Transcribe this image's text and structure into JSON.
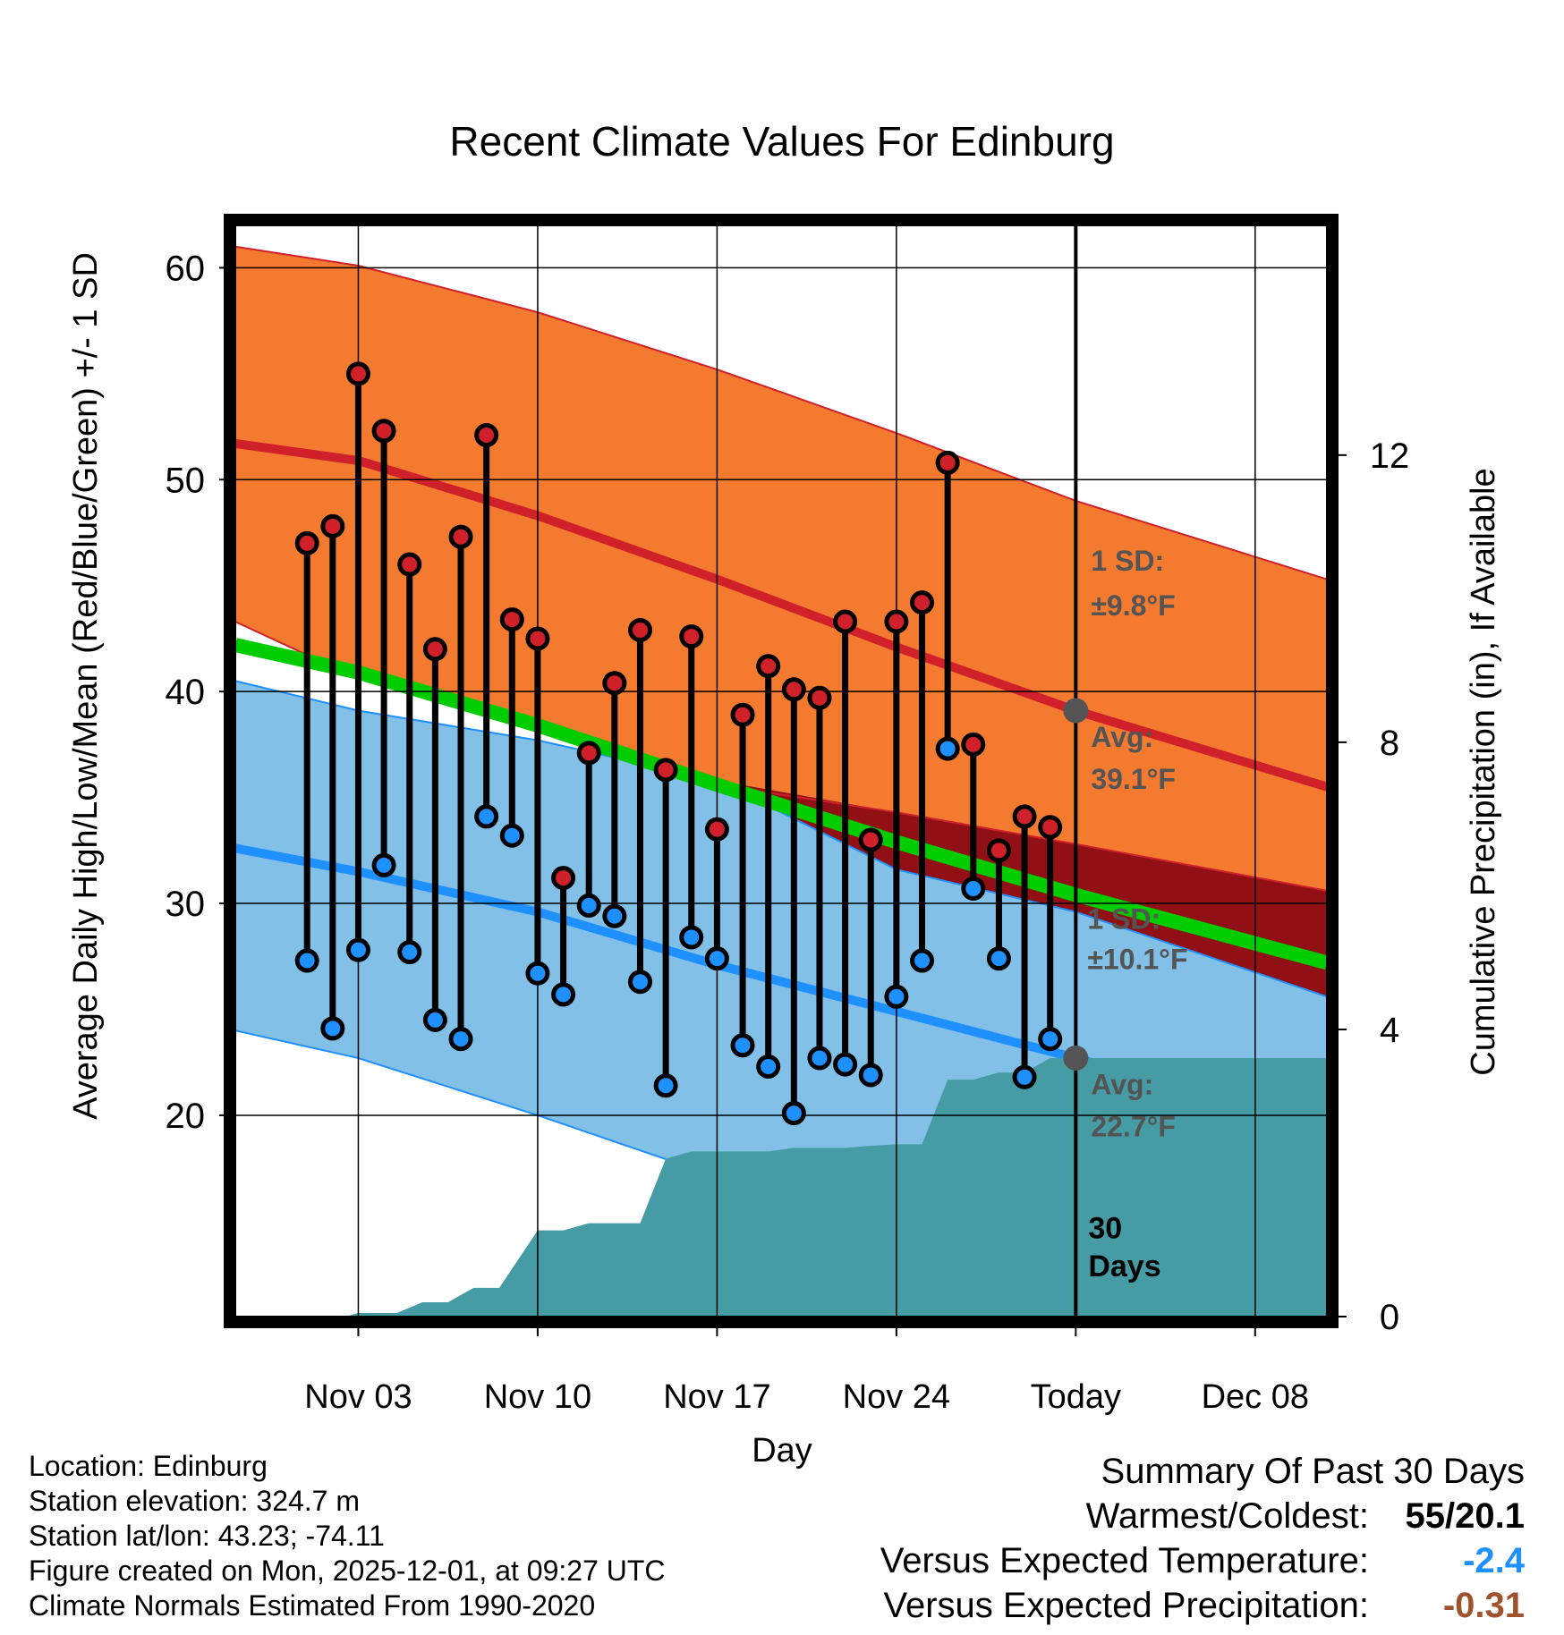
{
  "chart_data": {
    "type": "climate-range",
    "title": "Recent Climate Values For Edinburg",
    "xlabel": "Day",
    "ylabel": "Average Daily High/Low/Mean (Red/Blue/Green) +/- 1 SD",
    "y2label": "Cumulative Precipitation (in), If Available",
    "ylim": [
      10.5,
      62
    ],
    "y_ticks": [
      20,
      30,
      40,
      50,
      60
    ],
    "y2lim": [
      0,
      15.2
    ],
    "y2_ticks": [
      0,
      4,
      8,
      12
    ],
    "xlim": [
      -1.8,
      40.8
    ],
    "x_ticks": [
      {
        "day": 3,
        "label": "Nov 03"
      },
      {
        "day": 10,
        "label": "Nov 10"
      },
      {
        "day": 17,
        "label": "Nov 17"
      },
      {
        "day": 24,
        "label": "Nov 24"
      },
      {
        "day": 31,
        "label": "Today"
      },
      {
        "day": 38,
        "label": "Dec 08"
      }
    ],
    "today_day": 31,
    "normals": {
      "days": [
        -1.8,
        3,
        10,
        17,
        24,
        31,
        40.8
      ],
      "high_upper": [
        61.0,
        60.1,
        57.9,
        55.2,
        52.2,
        49.0,
        45.3
      ],
      "high_mean": [
        51.7,
        50.9,
        48.3,
        45.3,
        42.1,
        39.1,
        35.5
      ],
      "high_lower": [
        43.3,
        40.6,
        38.6,
        35.6,
        34.3,
        32.8,
        30.6
      ],
      "mean": [
        42.2,
        40.9,
        38.4,
        35.6,
        32.9,
        30.4,
        27.2
      ],
      "low_upper": [
        40.5,
        39.1,
        37.7,
        35.8,
        31.6,
        29.6,
        25.6
      ],
      "low_mean": [
        32.6,
        31.5,
        29.6,
        27.1,
        24.9,
        22.7,
        19.3
      ],
      "low_lower": [
        24.0,
        22.7,
        20.0,
        17.1,
        14.7,
        12.0,
        9.5
      ]
    },
    "high_sd_label": "1 SD:",
    "high_sd_value": "±9.8°F",
    "high_avg_label": "Avg:",
    "high_avg_value": "39.1°F",
    "high_avg": 39.1,
    "low_sd_label": "1 SD:",
    "low_sd_value": "±10.1°F",
    "low_avg_label": "Avg:",
    "low_avg_value": "22.7°F",
    "low_avg": 22.7,
    "days_label_1": "30",
    "days_label_2": "Days",
    "observations": [
      {
        "day": 1,
        "high": 47.0,
        "low": 27.3
      },
      {
        "day": 2,
        "high": 47.8,
        "low": 24.1
      },
      {
        "day": 3,
        "high": 55.0,
        "low": 27.8
      },
      {
        "day": 4,
        "high": 52.3,
        "low": 31.8
      },
      {
        "day": 5,
        "high": 46.0,
        "low": 27.7
      },
      {
        "day": 6,
        "high": 42.0,
        "low": 24.5
      },
      {
        "day": 7,
        "high": 47.3,
        "low": 23.6
      },
      {
        "day": 8,
        "high": 52.1,
        "low": 34.1
      },
      {
        "day": 9,
        "high": 43.4,
        "low": 33.2
      },
      {
        "day": 10,
        "high": 42.5,
        "low": 26.7
      },
      {
        "day": 11,
        "high": 31.2,
        "low": 25.7
      },
      {
        "day": 12,
        "high": 37.1,
        "low": 29.9
      },
      {
        "day": 13,
        "high": 40.4,
        "low": 29.4
      },
      {
        "day": 14,
        "high": 42.9,
        "low": 26.3
      },
      {
        "day": 15,
        "high": 36.3,
        "low": 21.4
      },
      {
        "day": 16,
        "high": 42.6,
        "low": 28.4
      },
      {
        "day": 17,
        "high": 33.5,
        "low": 27.4
      },
      {
        "day": 18,
        "high": 38.9,
        "low": 23.3
      },
      {
        "day": 19,
        "high": 41.2,
        "low": 22.3
      },
      {
        "day": 20,
        "high": 40.1,
        "low": 20.1
      },
      {
        "day": 21,
        "high": 39.7,
        "low": 22.7
      },
      {
        "day": 22,
        "high": 43.3,
        "low": 22.4
      },
      {
        "day": 23,
        "high": 33.0,
        "low": 21.9
      },
      {
        "day": 24,
        "high": 43.3,
        "low": 25.6
      },
      {
        "day": 25,
        "high": 44.2,
        "low": 27.3
      },
      {
        "day": 26,
        "high": 50.8,
        "low": 37.3
      },
      {
        "day": 27,
        "high": 37.5,
        "low": 30.7
      },
      {
        "day": 28,
        "high": 32.5,
        "low": 27.4
      },
      {
        "day": 29,
        "high": 34.1,
        "low": 21.8
      },
      {
        "day": 30,
        "high": 33.6,
        "low": 23.6
      }
    ],
    "precipitation": {
      "days": [
        -1.8,
        1.5,
        2.5,
        3,
        4.5,
        5.5,
        6.5,
        7.5,
        8.5,
        10,
        11,
        12,
        13,
        14,
        15,
        16,
        17,
        18,
        19,
        20,
        21,
        22,
        23,
        24,
        25,
        26,
        27,
        28,
        29,
        30,
        31,
        40.8
      ],
      "values": [
        0,
        0,
        0,
        0.05,
        0.05,
        0.2,
        0.2,
        0.4,
        0.4,
        1.2,
        1.2,
        1.3,
        1.3,
        1.3,
        2.2,
        2.3,
        2.3,
        2.3,
        2.3,
        2.35,
        2.35,
        2.35,
        2.38,
        2.4,
        2.4,
        3.3,
        3.3,
        3.4,
        3.4,
        3.6,
        3.6,
        3.6
      ]
    }
  },
  "footer": {
    "location": "Location: Edinburg",
    "elevation": "Station elevation: 324.7 m",
    "latlon": "Station lat/lon: 43.23; -74.11",
    "created": "Figure created on Mon, 2025-12-01, at 09:27 UTC",
    "normals": "Climate Normals Estimated From 1990-2020"
  },
  "summary": {
    "title": "Summary Of Past 30 Days",
    "warm_cold_label": "Warmest/Coldest:",
    "warm_cold_value": "55/20.1",
    "temp_label": "Versus Expected Temperature:",
    "temp_value": "-2.4",
    "precip_label": "Versus Expected Precipitation:",
    "precip_value": "-0.31"
  },
  "colors": {
    "high_band": "#f47a30",
    "high_mean": "#d0202a",
    "low_band": "#82c0e8",
    "low_mean": "#1e90ff",
    "mean_line": "#00cc00",
    "overlap": "#911016",
    "precip": "#469ca5",
    "annotation": "#545454",
    "temp_summary": "#1e90ff",
    "precip_summary": "#a0522d"
  }
}
